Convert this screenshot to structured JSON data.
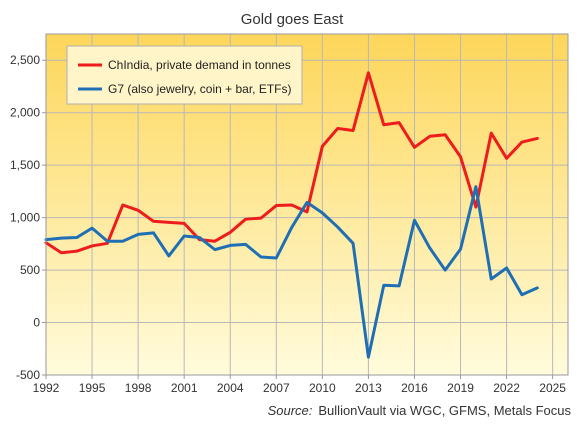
{
  "chart_data": {
    "type": "line",
    "title": "Gold goes East",
    "xlabel": "",
    "ylabel": "",
    "xlim": [
      1992,
      2026
    ],
    "ylim": [
      -500,
      2750
    ],
    "x_ticks": [
      "1992",
      "1995",
      "1998",
      "2001",
      "2004",
      "2007",
      "2010",
      "2013",
      "2016",
      "2019",
      "2022",
      "2025"
    ],
    "y_ticks": [
      "-500",
      "0",
      "500",
      "1,000",
      "1,500",
      "2,000",
      "2,500"
    ],
    "grid": true,
    "legend_position": "top-left",
    "background": "vertical gradient from orange-yellow at top to pale yellow at bottom",
    "series": [
      {
        "name": "ChIndia, private demand in tonnes",
        "color": "#ee1c1c",
        "x": [
          1992,
          1993,
          1994,
          1995,
          1996,
          1997,
          1998,
          1999,
          2000,
          2001,
          2002,
          2003,
          2004,
          2005,
          2006,
          2007,
          2008,
          2009,
          2010,
          2011,
          2012,
          2013,
          2014,
          2015,
          2016,
          2017,
          2018,
          2019,
          2020,
          2021,
          2022,
          2023,
          2024
        ],
        "values": [
          760,
          665,
          680,
          730,
          755,
          1120,
          1070,
          965,
          955,
          945,
          790,
          775,
          860,
          985,
          995,
          1115,
          1120,
          1055,
          1680,
          1850,
          1830,
          2380,
          1885,
          1905,
          1670,
          1775,
          1790,
          1580,
          1100,
          1805,
          1565,
          1720,
          1755
        ]
      },
      {
        "name": "G7 (also jewelry, coin + bar, ETFs)",
        "color": "#1f6fb4",
        "x": [
          1992,
          1993,
          1994,
          1995,
          1996,
          1997,
          1998,
          1999,
          2000,
          2001,
          2002,
          2003,
          2004,
          2005,
          2006,
          2007,
          2008,
          2009,
          2010,
          2011,
          2012,
          2013,
          2014,
          2015,
          2016,
          2017,
          2018,
          2019,
          2020,
          2021,
          2022,
          2023,
          2024
        ],
        "values": [
          790,
          805,
          810,
          900,
          775,
          775,
          840,
          855,
          635,
          825,
          810,
          695,
          735,
          745,
          625,
          615,
          905,
          1145,
          1045,
          910,
          755,
          -330,
          355,
          350,
          975,
          710,
          500,
          700,
          1295,
          415,
          520,
          265,
          330
        ]
      }
    ],
    "source_label": "Source:",
    "source_text": "BullionVault via  WGC, GFMS, Metals Focus"
  }
}
